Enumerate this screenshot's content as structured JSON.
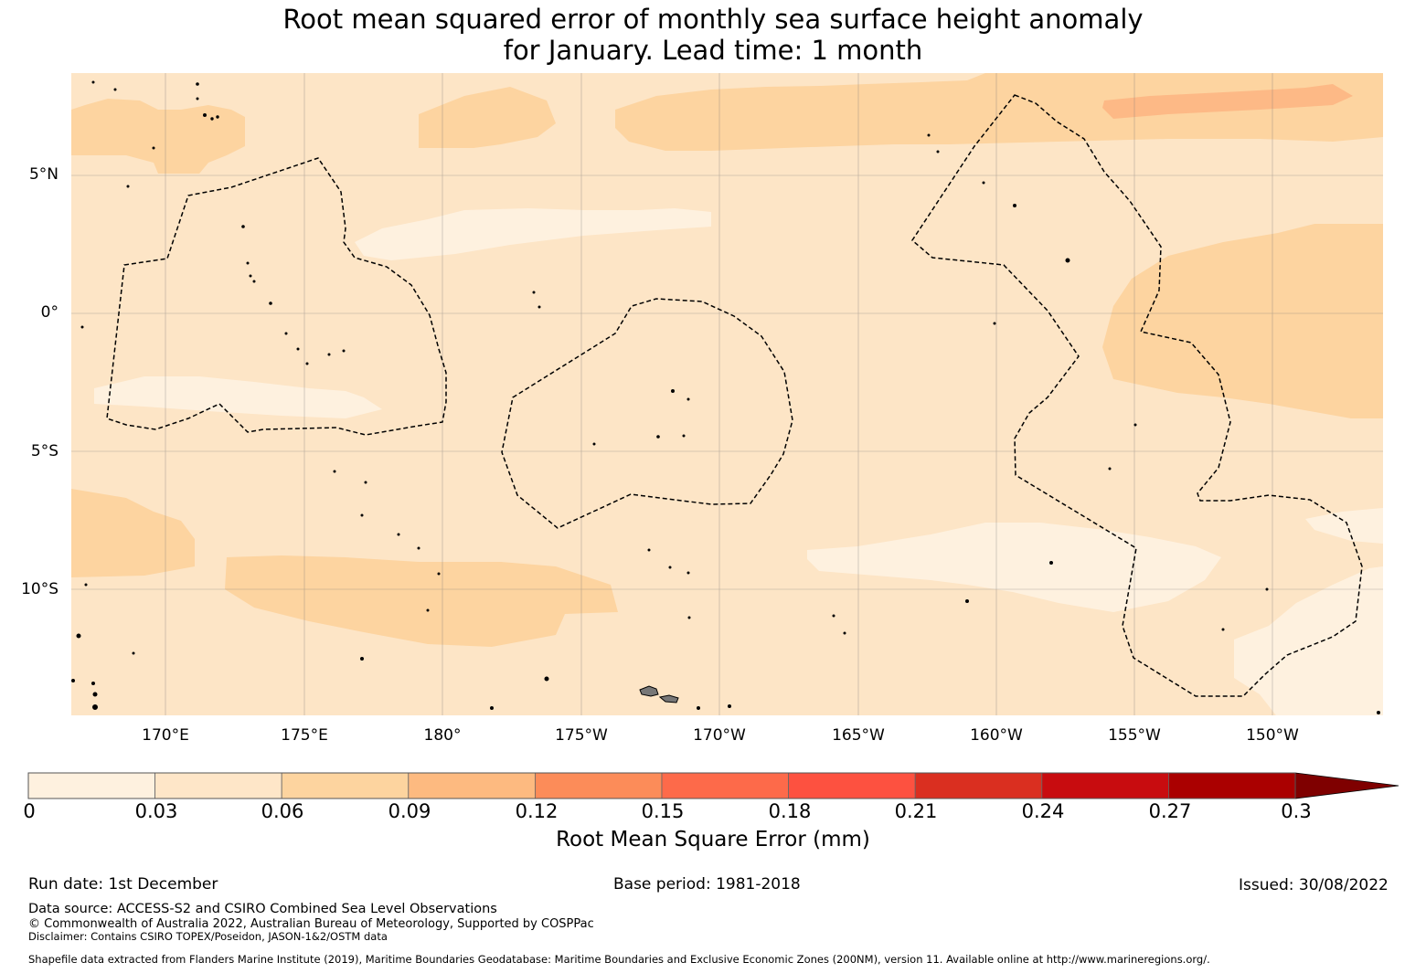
{
  "title": {
    "line1": "Root mean squared error of monthly sea surface height anomaly",
    "line2": "for January. Lead time: 1 month"
  },
  "map": {
    "lat_labels": [
      "5°N",
      "0°",
      "5°S",
      "10°S"
    ],
    "lon_labels": [
      "170°E",
      "175°E",
      "180°",
      "175°W",
      "170°W",
      "165°W",
      "160°W",
      "155°W",
      "150°W"
    ],
    "eez_boundary_style": "dashed",
    "background_color": "#fde5c6"
  },
  "colorbar": {
    "ticks": [
      "0",
      "0.03",
      "0.06",
      "0.09",
      "0.12",
      "0.15",
      "0.18",
      "0.21",
      "0.24",
      "0.27",
      "0.3"
    ],
    "colors": [
      "#fef1df",
      "#fee6c8",
      "#fdd49f",
      "#fdba80",
      "#fc8c59",
      "#fd6a4a",
      "#fd5140",
      "#da2f20",
      "#c80c0f",
      "#aa0000",
      "#7f0000"
    ],
    "label": "Root Mean Square Error (mm)",
    "extend": "max"
  },
  "footer": {
    "run_date": "Run date: 1st December",
    "base_period": "Base period: 1981-2018",
    "issued": "Issued: 30/08/2022",
    "data_source": "Data source: ACCESS-S2 and CSIRO Combined Sea Level Observations",
    "copyright": "© Commonwealth of Australia 2022, Australian Bureau of Meteorology, Supported by COSPPac",
    "disclaimer": "Disclaimer: Contains CSIRO TOPEX/Poseidon, JASON-1&2/OSTM data",
    "shapefile": "Shapefile data extracted from Flanders Marine Institute (2019), Maritime Boundaries Geodatabase: Maritime Boundaries and Exclusive Economic Zones (200NM), version 11. Available online at http://www.marineregions.org/."
  }
}
